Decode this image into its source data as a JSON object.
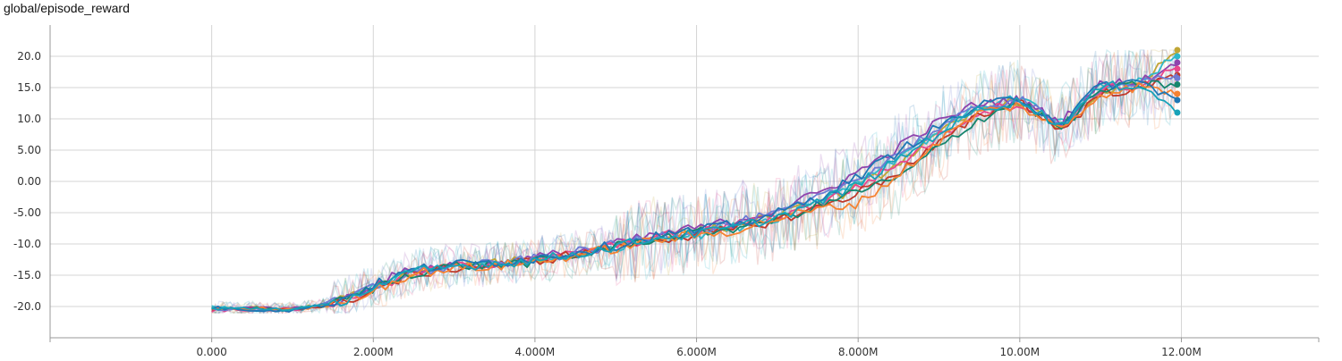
{
  "chart_title": "global/episode_reward",
  "chart_data": {
    "type": "line",
    "title": "global/episode_reward",
    "xlabel": "",
    "ylabel": "",
    "xlim": [
      -2000000,
      13700000
    ],
    "ylim": [
      -25,
      25
    ],
    "grid": true,
    "legend": "none",
    "y_ticks": [
      -20,
      -15,
      -10,
      -5,
      0,
      5,
      10,
      15,
      20
    ],
    "y_tick_labels": [
      "-20.0",
      "-15.0",
      "-10.0",
      "-5.00",
      "0.00",
      "5.00",
      "10.0",
      "15.0",
      "20.0"
    ],
    "x_ticks": [
      0,
      2000000,
      4000000,
      6000000,
      8000000,
      10000000,
      12000000
    ],
    "x_tick_labels": [
      "0.000",
      "2.000M",
      "4.000M",
      "6.000M",
      "8.000M",
      "10.00M",
      "12.00M"
    ],
    "x": [
      0,
      500000,
      1000000,
      1500000,
      2000000,
      2500000,
      3000000,
      3500000,
      4000000,
      4500000,
      5000000,
      5500000,
      6000000,
      6500000,
      7000000,
      7500000,
      8000000,
      8500000,
      9000000,
      9500000,
      10000000,
      10500000,
      11000000,
      11500000,
      11950000
    ],
    "series": [
      {
        "color": "#c0a636",
        "values": [
          -20.5,
          -20.3,
          -20.4,
          -19.5,
          -17,
          -14.5,
          -13.5,
          -13.2,
          -12.5,
          -11.5,
          -10.2,
          -8.8,
          -8,
          -7,
          -5.5,
          -3.5,
          -1,
          3,
          7.5,
          11.5,
          13,
          8.5,
          14.5,
          15.5,
          21
        ]
      },
      {
        "color": "#2eb8c9",
        "values": [
          -20.2,
          -20.5,
          -20.6,
          -19.8,
          -16.8,
          -14.2,
          -13.8,
          -13,
          -12.8,
          -11.8,
          -10.5,
          -9,
          -8.5,
          -7.2,
          -5.8,
          -3,
          0,
          4,
          8,
          12,
          13.5,
          9,
          15,
          16,
          20
        ]
      },
      {
        "color": "#8e44ad",
        "values": [
          -20.4,
          -20.2,
          -20.3,
          -19.6,
          -16.5,
          -14,
          -13.4,
          -13.5,
          -12.2,
          -11.2,
          -10,
          -8.5,
          -7.5,
          -6.2,
          -4.5,
          -2,
          1.5,
          5.5,
          9.5,
          12.5,
          13,
          9.5,
          15.5,
          16,
          19
        ]
      },
      {
        "color": "#e8478b",
        "values": [
          -20.6,
          -20.4,
          -20.5,
          -19.7,
          -17.2,
          -14.8,
          -13.6,
          -13.1,
          -12.6,
          -11.6,
          -10.3,
          -8.9,
          -8.2,
          -7,
          -5.6,
          -3.6,
          -0.8,
          2.8,
          7.2,
          11.2,
          12.5,
          8.8,
          14.8,
          15.2,
          18
        ]
      },
      {
        "color": "#c0392b",
        "values": [
          -20.5,
          -20.5,
          -20.3,
          -19.9,
          -17.4,
          -14.9,
          -13.8,
          -13.4,
          -12.7,
          -11.7,
          -10.6,
          -9.2,
          -8.6,
          -7.6,
          -6.2,
          -4.2,
          -1.8,
          1.5,
          6,
          10.5,
          13,
          8,
          14,
          15,
          17
        ]
      },
      {
        "color": "#6e7bd4",
        "values": [
          -20.3,
          -20.6,
          -20.4,
          -19.4,
          -16.9,
          -14.4,
          -13.7,
          -13.2,
          -12.4,
          -11.4,
          -10.1,
          -8.6,
          -7.8,
          -6.6,
          -5.2,
          -2.8,
          0.5,
          4.5,
          8.5,
          11.8,
          13.2,
          8.7,
          15.2,
          15.8,
          16.5
        ]
      },
      {
        "color": "#16866e",
        "values": [
          -20.4,
          -20.3,
          -20.5,
          -19.6,
          -17.1,
          -14.6,
          -13.5,
          -13.3,
          -12.9,
          -11.9,
          -10.4,
          -9.1,
          -8.3,
          -7.4,
          -6,
          -4,
          -1.5,
          0.5,
          5.5,
          10,
          12.8,
          8.3,
          14.6,
          15.4,
          15.5
        ]
      },
      {
        "color": "#f58231",
        "values": [
          -20.5,
          -20.4,
          -20.4,
          -19.8,
          -17.3,
          -14.7,
          -13.9,
          -13.6,
          -12.8,
          -11.8,
          -10.7,
          -9.3,
          -8.7,
          -7.8,
          -5.9,
          -4.5,
          -3.5,
          1,
          6.5,
          11,
          12.2,
          8.2,
          14,
          15.2,
          14
        ]
      },
      {
        "color": "#1f77b4",
        "values": [
          -20.2,
          -20.5,
          -20.6,
          -19.5,
          -16.6,
          -14.1,
          -13.3,
          -12.9,
          -12.3,
          -11.3,
          -10.2,
          -8.7,
          -7.9,
          -6.8,
          -5.1,
          -2.6,
          0.8,
          4.8,
          8.8,
          12,
          13.4,
          9.2,
          15.4,
          15.9,
          13
        ]
      },
      {
        "color": "#17a2b8",
        "values": [
          -20.4,
          -20.3,
          -20.4,
          -19.7,
          -17,
          -14.5,
          -13.6,
          -13.1,
          -12.6,
          -11.6,
          -10.4,
          -9,
          -8.4,
          -7.3,
          -5.7,
          -3.4,
          -0.5,
          3.5,
          7.8,
          11.6,
          12.9,
          8.9,
          15,
          15.6,
          11
        ]
      }
    ]
  }
}
